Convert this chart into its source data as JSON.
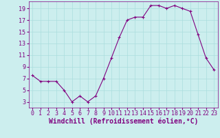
{
  "x": [
    0,
    1,
    2,
    3,
    4,
    5,
    6,
    7,
    8,
    9,
    10,
    11,
    12,
    13,
    14,
    15,
    16,
    17,
    18,
    19,
    20,
    21,
    22,
    23
  ],
  "y": [
    7.5,
    6.5,
    6.5,
    6.5,
    5.0,
    3.0,
    4.0,
    3.0,
    4.0,
    7.0,
    10.5,
    14.0,
    17.0,
    17.5,
    17.5,
    19.5,
    19.5,
    19.0,
    19.5,
    19.0,
    18.5,
    14.5,
    10.5,
    8.5
  ],
  "line_color": "#800080",
  "marker": "+",
  "marker_color": "#800080",
  "bg_color": "#cceeee",
  "grid_color": "#aadddd",
  "xlabel": "Windchill (Refroidissement éolien,°C)",
  "xlabel_color": "#800080",
  "tick_color": "#800080",
  "xlim": [
    -0.5,
    23.5
  ],
  "ylim": [
    2.0,
    20.2
  ],
  "yticks": [
    3,
    5,
    7,
    9,
    11,
    13,
    15,
    17,
    19
  ],
  "xticks": [
    0,
    1,
    2,
    3,
    4,
    5,
    6,
    7,
    8,
    9,
    10,
    11,
    12,
    13,
    14,
    15,
    16,
    17,
    18,
    19,
    20,
    21,
    22,
    23
  ],
  "tick_fontsize": 6,
  "xlabel_fontsize": 7,
  "marker_size": 3,
  "linewidth": 0.8
}
